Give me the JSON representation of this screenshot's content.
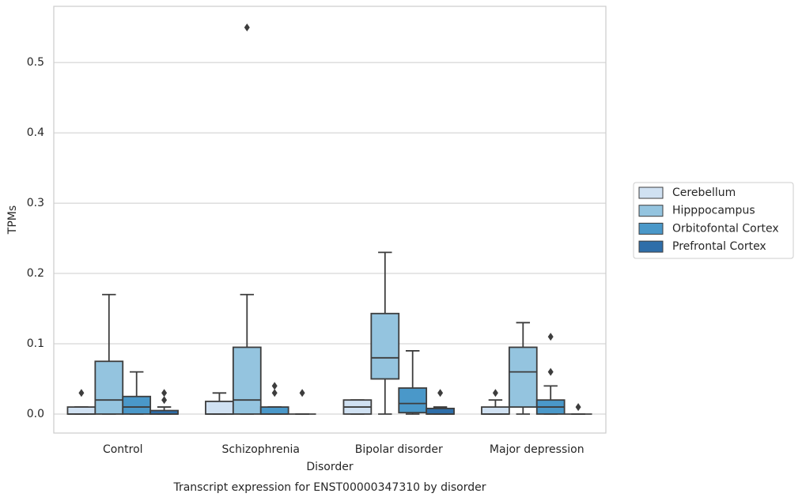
{
  "chart_data": {
    "type": "box",
    "title": "Transcript expression for ENST00000347310 by disorder",
    "xlabel": "Disorder",
    "ylabel": "TPMs",
    "categories": [
      "Control",
      "Schizophrenia",
      "Bipolar disorder",
      "Major depression"
    ],
    "ylim": [
      -0.027,
      0.58
    ],
    "yticks": [
      {
        "value": 0,
        "label": "0.0"
      },
      0.1,
      0.2,
      0.3,
      0.4,
      0.5
    ],
    "grid": true,
    "legend": "right",
    "series": [
      {
        "name": "Cerebellum",
        "color": "#d0e1f2",
        "boxes": [
          {
            "min": 0,
            "q1": 0,
            "median": 0,
            "q3": 0.01,
            "max": 0.01,
            "outliers": [
              0.03
            ]
          },
          {
            "min": 0,
            "q1": 0,
            "median": 0,
            "q3": 0.018,
            "max": 0.03,
            "outliers": []
          },
          {
            "min": 0,
            "q1": 0,
            "median": 0.01,
            "q3": 0.02,
            "max": 0.02,
            "outliers": []
          },
          {
            "min": 0,
            "q1": 0,
            "median": 0,
            "q3": 0.01,
            "max": 0.02,
            "outliers": [
              0.03
            ]
          }
        ]
      },
      {
        "name": "Hipppocampus",
        "color": "#94c4df",
        "boxes": [
          {
            "min": 0,
            "q1": 0,
            "median": 0.02,
            "q3": 0.075,
            "max": 0.17,
            "outliers": []
          },
          {
            "min": 0,
            "q1": 0,
            "median": 0.02,
            "q3": 0.095,
            "max": 0.17,
            "outliers": [
              0.55
            ]
          },
          {
            "min": 0,
            "q1": 0.05,
            "median": 0.08,
            "q3": 0.143,
            "max": 0.23,
            "outliers": []
          },
          {
            "min": 0,
            "q1": 0.01,
            "median": 0.06,
            "q3": 0.095,
            "max": 0.13,
            "outliers": []
          }
        ]
      },
      {
        "name": "Orbitofontal Cortex",
        "color": "#4a98c9",
        "boxes": [
          {
            "min": 0,
            "q1": 0,
            "median": 0.01,
            "q3": 0.025,
            "max": 0.06,
            "outliers": []
          },
          {
            "min": 0,
            "q1": 0,
            "median": 0,
            "q3": 0.01,
            "max": 0.01,
            "outliers": [
              0.03,
              0.04
            ]
          },
          {
            "min": 0,
            "q1": 0.002,
            "median": 0.015,
            "q3": 0.037,
            "max": 0.09,
            "outliers": []
          },
          {
            "min": 0,
            "q1": 0,
            "median": 0.01,
            "q3": 0.02,
            "max": 0.04,
            "outliers": [
              0.06,
              0.11
            ]
          }
        ]
      },
      {
        "name": "Prefrontal Cortex",
        "color": "#2e6ea9",
        "boxes": [
          {
            "min": 0,
            "q1": 0,
            "median": 0,
            "q3": 0.005,
            "max": 0.01,
            "outliers": [
              0.02,
              0.03
            ]
          },
          {
            "min": 0,
            "q1": 0,
            "median": 0,
            "q3": 0,
            "max": 0,
            "outliers": [
              0.03
            ]
          },
          {
            "min": 0,
            "q1": 0,
            "median": 0,
            "q3": 0.008,
            "max": 0.01,
            "outliers": [
              0.03
            ]
          },
          {
            "min": 0,
            "q1": 0,
            "median": 0,
            "q3": 0,
            "max": 0,
            "outliers": [
              0.01
            ]
          }
        ]
      }
    ]
  }
}
